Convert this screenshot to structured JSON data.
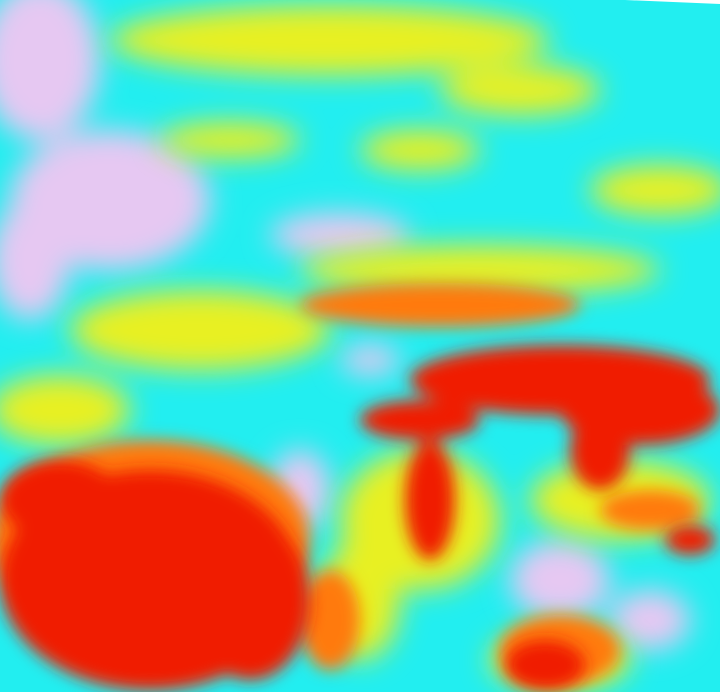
{
  "image": {
    "kind": "false-color satellite imagery",
    "palette": {
      "cold": "#e6c8f2",
      "cool": "#22eef0",
      "mid": "#e8f020",
      "warm": "#ff7a10",
      "hot": "#f01a00"
    }
  }
}
